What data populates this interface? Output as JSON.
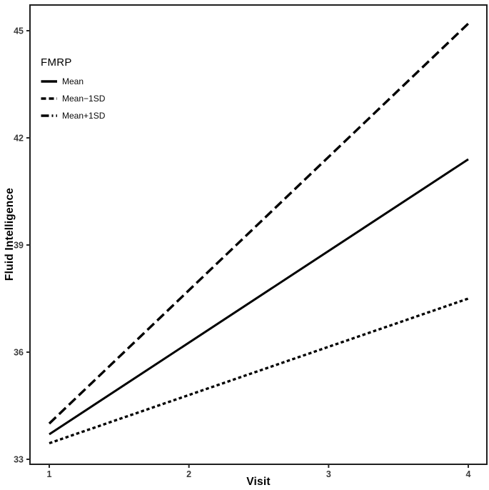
{
  "chart_data": {
    "type": "line",
    "title": "",
    "xlabel": "Visit",
    "ylabel": "Fluid Intelligence",
    "legend_title": "FMRP",
    "legend_position": "top-left-inside",
    "grid": false,
    "background": "#ffffff",
    "line_color": "#000000",
    "axis_text_color": "#3d3d3d",
    "xlim": [
      0.862,
      4.133
    ],
    "ylim": [
      32.86,
      45.72
    ],
    "x_ticks": [
      1,
      2,
      3,
      4
    ],
    "y_ticks": [
      33,
      36,
      39,
      42,
      45
    ],
    "series": [
      {
        "name": "Mean",
        "linetype": "solid",
        "x": [
          1,
          4
        ],
        "y": [
          33.7,
          41.4
        ]
      },
      {
        "name": "Mean−1SD",
        "linetype": "dashed",
        "x": [
          1,
          4
        ],
        "y": [
          34.0,
          45.2
        ]
      },
      {
        "name": "Mean+1SD",
        "linetype": "dotted",
        "x": [
          1,
          4
        ],
        "y": [
          33.45,
          37.5
        ]
      }
    ]
  }
}
